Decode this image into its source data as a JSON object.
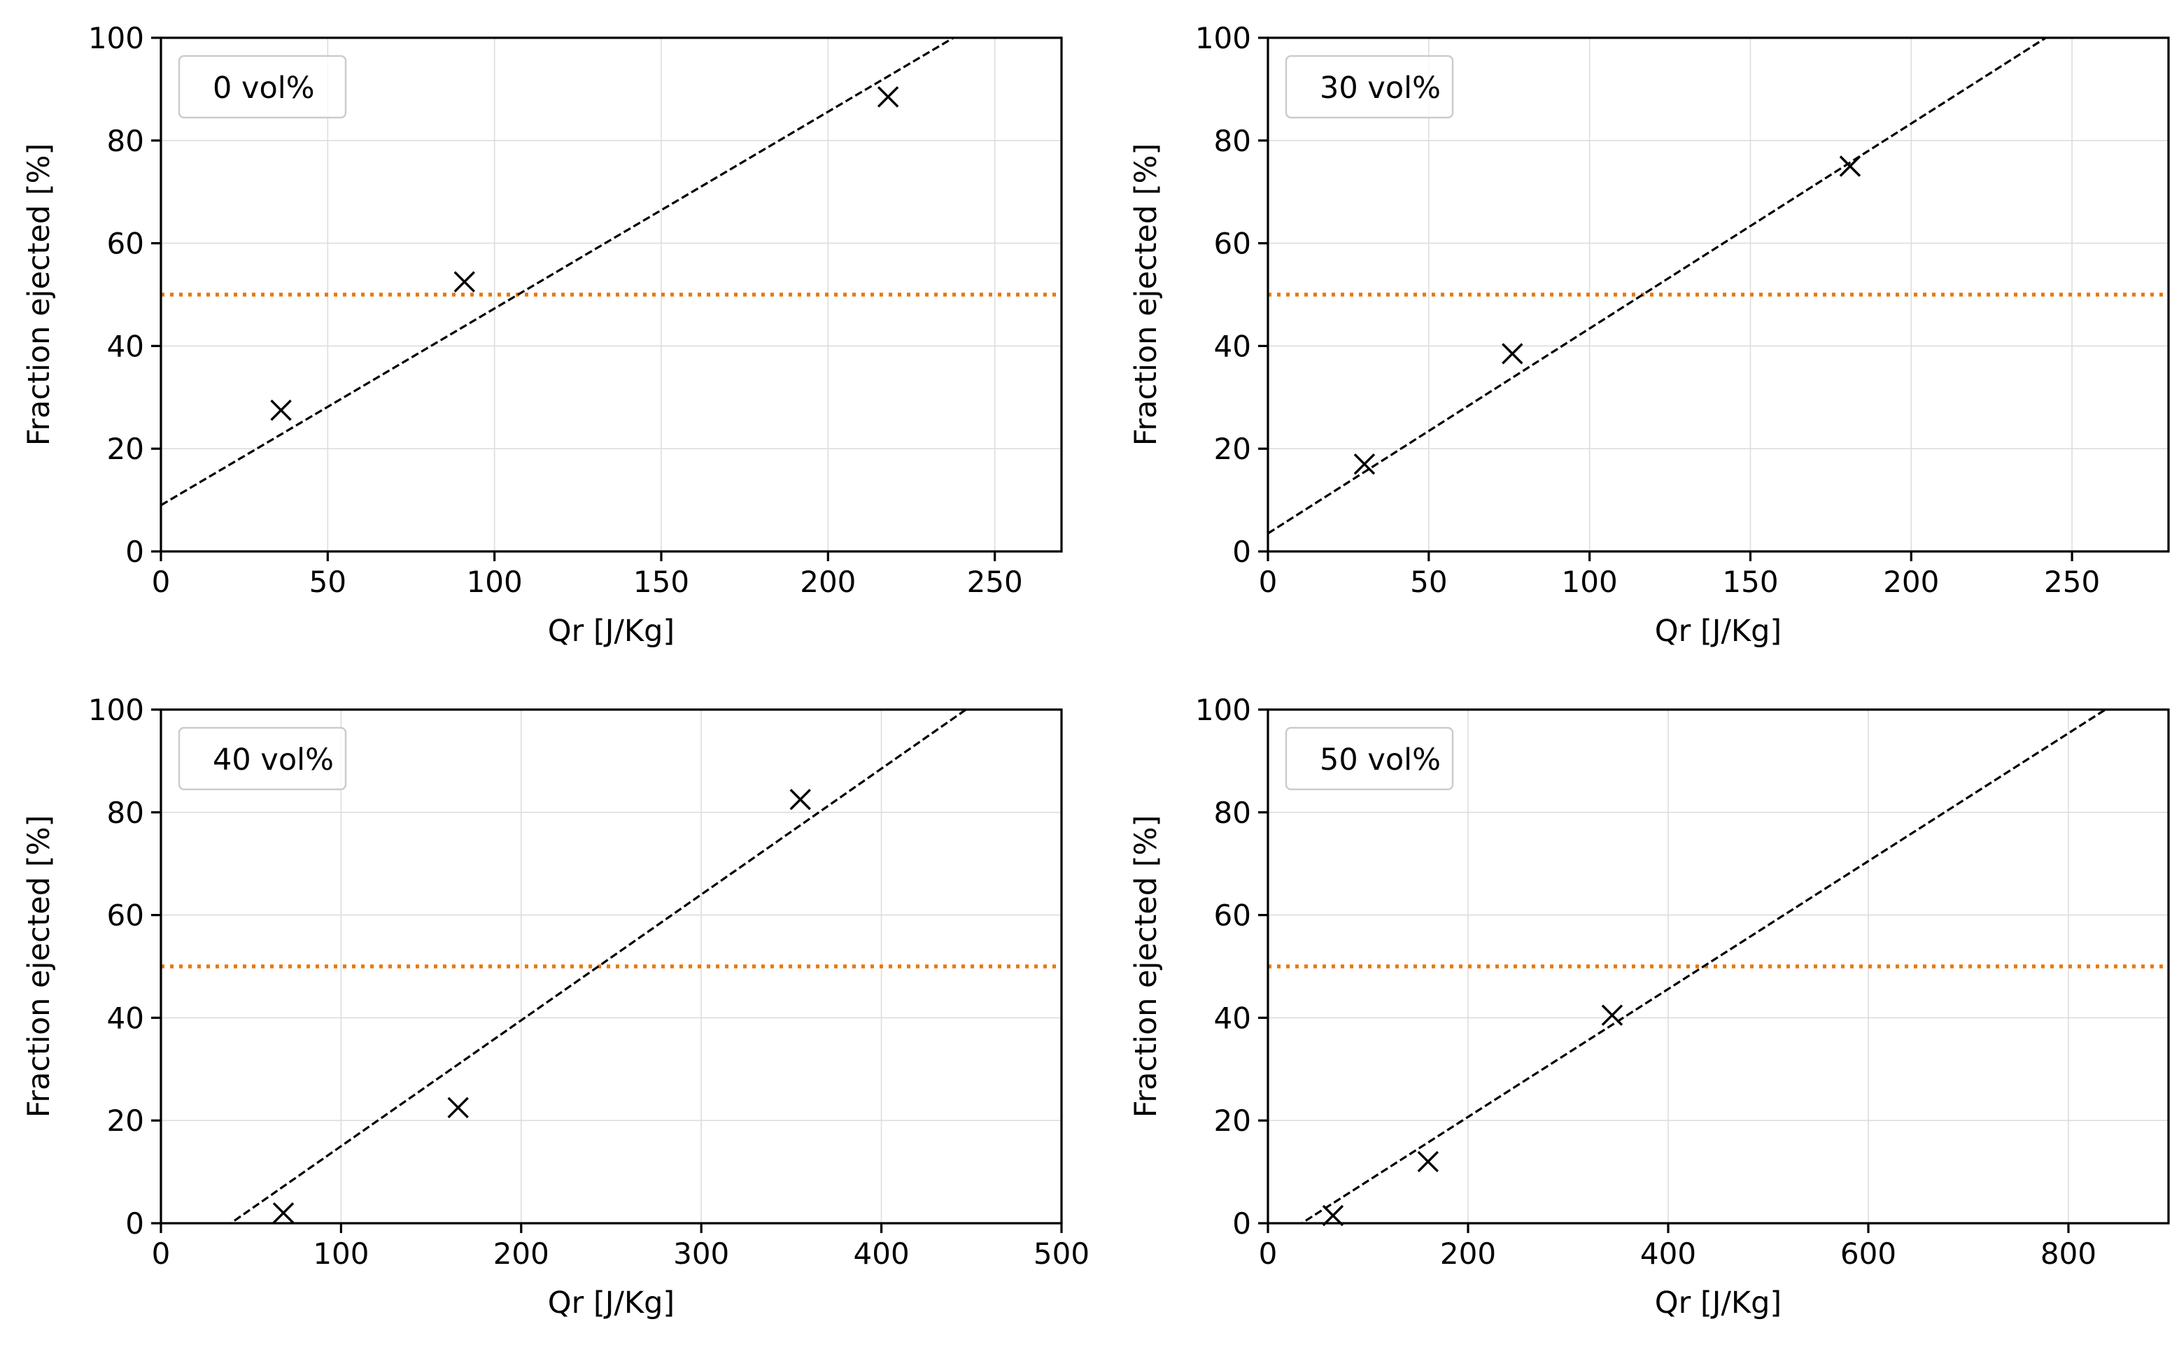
{
  "chart_data": [
    {
      "type": "scatter",
      "legend": "0 vol%",
      "legend_placement": "top-left",
      "xlabel": "Qr [J/Kg]",
      "ylabel": "Fraction ejected [%]",
      "xlim": [
        0,
        270
      ],
      "ylim": [
        0,
        100
      ],
      "xticks": [
        0,
        50,
        100,
        150,
        200,
        250
      ],
      "yticks": [
        0,
        20,
        40,
        60,
        80,
        100
      ],
      "grid": true,
      "points": {
        "x": [
          36,
          91,
          218
        ],
        "y": [
          27.5,
          52.5,
          88.5
        ]
      },
      "fit_line": {
        "slope": 0.383,
        "intercept": 9.0,
        "style": "dashed",
        "color": "#000000"
      },
      "threshold": {
        "y": 50,
        "style": "dotted",
        "color": "#e8770f"
      }
    },
    {
      "type": "scatter",
      "legend": "30 vol%",
      "legend_placement": "top-left",
      "xlabel": "Qr [J/Kg]",
      "ylabel": "Fraction ejected [%]",
      "xlim": [
        0,
        280
      ],
      "ylim": [
        0,
        100
      ],
      "xticks": [
        0,
        50,
        100,
        150,
        200,
        250
      ],
      "yticks": [
        0,
        20,
        40,
        60,
        80,
        100
      ],
      "grid": true,
      "points": {
        "x": [
          30,
          76,
          181
        ],
        "y": [
          17,
          38.5,
          75
        ]
      },
      "fit_line": {
        "slope": 0.399,
        "intercept": 3.5,
        "style": "dashed",
        "color": "#000000"
      },
      "threshold": {
        "y": 50,
        "style": "dotted",
        "color": "#e8770f"
      }
    },
    {
      "type": "scatter",
      "legend": "40 vol%",
      "legend_placement": "top-left",
      "xlabel": "Qr [J/Kg]",
      "ylabel": "Fraction ejected [%]",
      "xlim": [
        0,
        500
      ],
      "ylim": [
        0,
        100
      ],
      "xticks": [
        0,
        100,
        200,
        300,
        400,
        500
      ],
      "yticks": [
        0,
        20,
        40,
        60,
        80,
        100
      ],
      "grid": true,
      "points": {
        "x": [
          68,
          165,
          355
        ],
        "y": [
          2,
          22.5,
          82.5
        ]
      },
      "fit_line": {
        "slope": 0.245,
        "intercept": -9.5,
        "style": "dashed",
        "color": "#000000"
      },
      "threshold": {
        "y": 50,
        "style": "dotted",
        "color": "#e8770f"
      }
    },
    {
      "type": "scatter",
      "legend": "50 vol%",
      "legend_placement": "top-left",
      "xlabel": "Qr [J/Kg]",
      "ylabel": "Fraction ejected [%]",
      "xlim": [
        0,
        900
      ],
      "ylim": [
        0,
        100
      ],
      "xticks": [
        0,
        200,
        400,
        600,
        800
      ],
      "yticks": [
        0,
        20,
        40,
        60,
        80,
        100
      ],
      "grid": true,
      "points": {
        "x": [
          65,
          160,
          344
        ],
        "y": [
          1.5,
          12,
          40.5
        ]
      },
      "fit_line": {
        "slope": 0.1245,
        "intercept": -4.2,
        "style": "dashed",
        "color": "#000000"
      },
      "threshold": {
        "y": 50,
        "style": "dotted",
        "color": "#e8770f"
      }
    }
  ]
}
